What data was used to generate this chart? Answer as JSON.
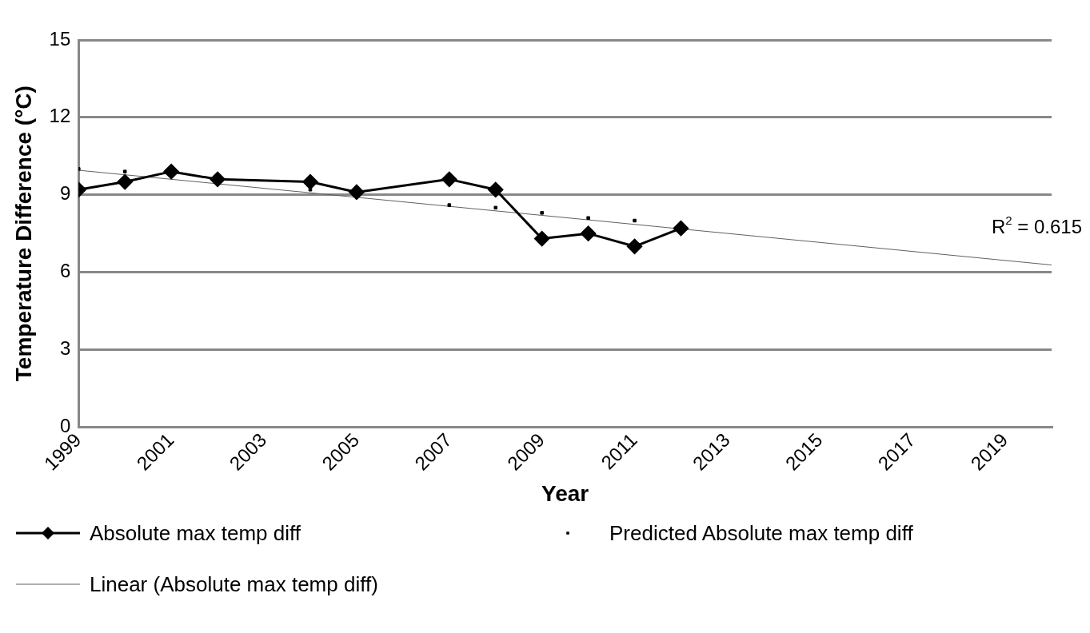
{
  "chart_data": {
    "type": "line",
    "xlabel": "Year",
    "ylabel": "Temperature Difference (°C)",
    "x": [
      1999,
      2000,
      2001,
      2002,
      2004,
      2005,
      2007,
      2008,
      2009,
      2010,
      2011,
      2012
    ],
    "series": [
      {
        "name": "Absolute max temp diff",
        "type": "line",
        "color": "#000000",
        "marker": "diamond",
        "values": [
          9.2,
          9.5,
          9.9,
          9.6,
          9.5,
          9.1,
          9.6,
          9.2,
          7.3,
          7.5,
          7.0,
          7.7
        ]
      },
      {
        "name": "Predicted Absolute max temp diff",
        "type": "scatter",
        "color": "#000000",
        "marker": "square",
        "values": [
          10.0,
          9.9,
          null,
          null,
          9.2,
          null,
          8.6,
          8.5,
          8.3,
          8.1,
          8.0,
          null
        ]
      },
      {
        "name": "Linear (Absolute max temp diff)",
        "type": "line",
        "color": "#606060",
        "marker": "none",
        "x": [
          1999,
          2020
        ],
        "values": [
          9.95,
          6.28
        ]
      }
    ],
    "annotations": [
      "R$^{2}$ = 0.615"
    ],
    "xlim": [
      1999,
      2020
    ],
    "xticks": [
      1999,
      2001,
      2003,
      2005,
      2007,
      2009,
      2011,
      2013,
      2015,
      2017,
      2019
    ],
    "ylim": [
      0,
      15
    ],
    "yticks": [
      0,
      3,
      6,
      9,
      12,
      15
    ],
    "grid": "y",
    "legend": "bottom"
  }
}
